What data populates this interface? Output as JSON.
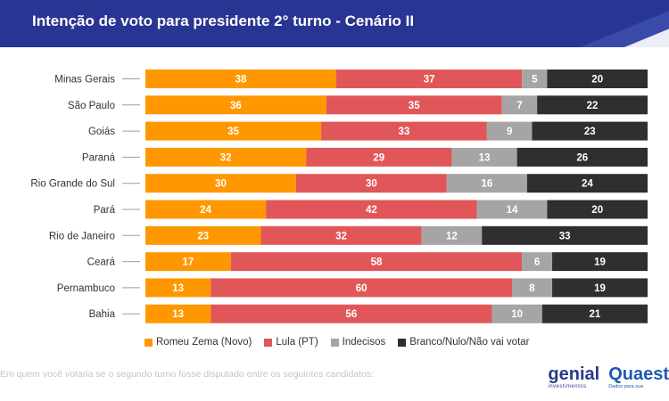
{
  "header": {
    "title": "Intenção de voto para presidente 2° turno - Cenário II"
  },
  "chart_data": {
    "type": "bar",
    "orientation": "horizontal",
    "stacked": true,
    "normalized": true,
    "title": "Intenção de voto para presidente 2° turno - Cenário II",
    "categories": [
      "Minas Gerais",
      "São Paulo",
      "Goiás",
      "Paraná",
      "Rio Grande do Sul",
      "Pará",
      "Rio de Janeiro",
      "Ceará",
      "Pernambuco",
      "Bahia"
    ],
    "series": [
      {
        "name": "Romeu Zema (Novo)",
        "color": "#ff9800",
        "values": [
          38,
          36,
          35,
          32,
          30,
          24,
          23,
          17,
          13,
          13
        ]
      },
      {
        "name": "Lula (PT)",
        "color": "#e15759",
        "values": [
          37,
          35,
          33,
          29,
          30,
          42,
          32,
          58,
          60,
          56
        ]
      },
      {
        "name": "Indecisos",
        "color": "#a5a5a5",
        "values": [
          5,
          7,
          9,
          13,
          16,
          14,
          12,
          6,
          8,
          10
        ]
      },
      {
        "name": "Branco/Nulo/Não vai votar",
        "color": "#2f2f2f",
        "values": [
          20,
          22,
          23,
          26,
          24,
          20,
          33,
          19,
          19,
          21
        ]
      }
    ],
    "legend": "bottom",
    "grid": false
  },
  "footnote": "Em quem você votaria se o segundo turno fosse disputado entre os seguintes candidatos:",
  "logos": {
    "genial": "genial",
    "genial_sub": "investimentos",
    "quaest": "Quaest",
    "quaest_sub": "Dados para sua"
  }
}
